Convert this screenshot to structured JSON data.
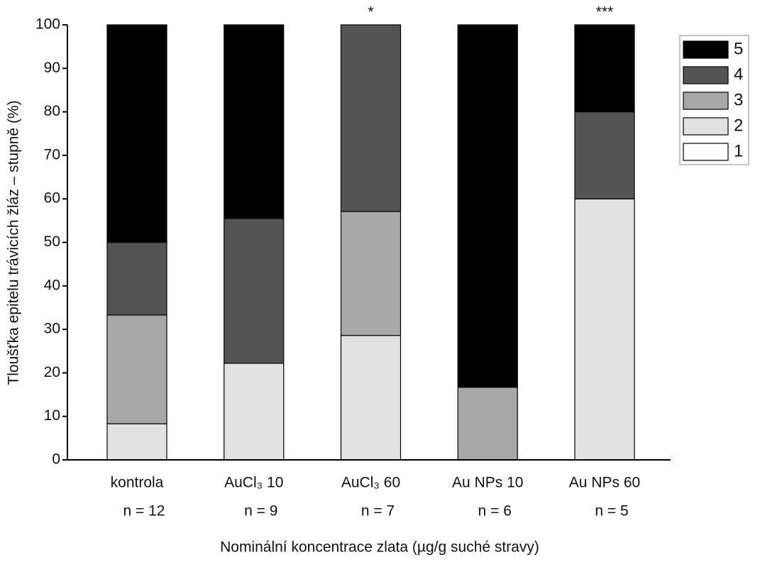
{
  "chart_data": {
    "type": "stacked_bar",
    "y_label": "Tloušťka epitelu trávicích žláz – stupně (%)",
    "x_label": "Nominální koncentrace zlata (µg/g suché stravy)",
    "categories": [
      "kontrola",
      "AuCl₃ 10",
      "AuCl₃ 60",
      "Au NPs 10",
      "Au NPs 60"
    ],
    "n_labels": [
      "n = 12",
      "n = 9",
      "n = 7",
      "n = 6",
      "n = 5"
    ],
    "annotations": [
      {
        "text": "*",
        "x": "AuCl₃ 60"
      },
      {
        "text": "***",
        "x": "Au NPs 60"
      }
    ],
    "series": [
      {
        "name": "1",
        "color": "#ffffff",
        "values": [
          0,
          0,
          0,
          0,
          0
        ]
      },
      {
        "name": "2",
        "color": "#e2e2e2",
        "values": [
          8.3,
          22.2,
          28.6,
          0,
          60
        ]
      },
      {
        "name": "3",
        "color": "#a8a8a8",
        "values": [
          25,
          0,
          28.5,
          16.7,
          0
        ]
      },
      {
        "name": "4",
        "color": "#545454",
        "values": [
          16.7,
          33.3,
          42.9,
          0,
          20
        ]
      },
      {
        "name": "5",
        "color": "#000000",
        "values": [
          50,
          44.5,
          0,
          83.3,
          20
        ]
      }
    ],
    "ylim": [
      0,
      100
    ],
    "yticks": [
      0,
      10,
      20,
      30,
      40,
      50,
      60,
      70,
      80,
      90,
      100
    ],
    "legend": "right"
  }
}
